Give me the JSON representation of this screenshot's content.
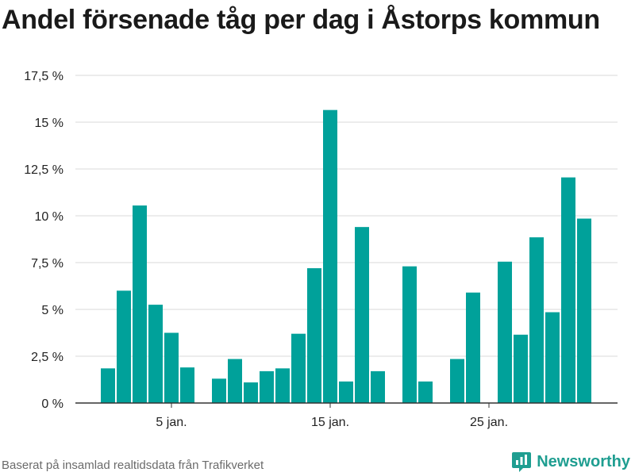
{
  "title": "Andel försenade tåg per dag i Åstorps kommun",
  "footer": "Baserat på insamlad realtidsdata från Trafikverket",
  "brand": {
    "name": "Newsworthy",
    "icon": "newsworthy-logo-icon",
    "color": "#1f9e91"
  },
  "colors": {
    "bar": "#00a19a",
    "grid": "#d9d9d9",
    "axis": "#333333"
  },
  "chart_data": {
    "type": "bar",
    "title": "Andel försenade tåg per dag i Åstorps kommun",
    "xlabel": "",
    "ylabel": "",
    "ylim": [
      0,
      17.5
    ],
    "y_ticks": [
      0,
      2.5,
      5,
      7.5,
      10,
      12.5,
      15,
      17.5
    ],
    "y_tick_labels": [
      "0 %",
      "2,5 %",
      "5 %",
      "7,5 %",
      "10 %",
      "12,5 %",
      "15 %",
      "17,5 %"
    ],
    "x_tick_labels": [
      {
        "day": 5,
        "label": "5 jan."
      },
      {
        "day": 15,
        "label": "15 jan."
      },
      {
        "day": 25,
        "label": "25 jan."
      }
    ],
    "grid": true,
    "days": [
      1,
      2,
      3,
      4,
      5,
      6,
      7,
      8,
      9,
      10,
      11,
      12,
      13,
      14,
      15,
      16,
      17,
      18,
      19,
      20,
      21,
      22,
      23,
      24,
      25,
      26,
      27,
      28,
      29,
      30,
      31,
      32
    ],
    "values": [
      1.85,
      6.0,
      10.55,
      5.25,
      3.75,
      1.9,
      null,
      1.3,
      2.35,
      1.1,
      1.7,
      1.85,
      3.7,
      7.2,
      15.65,
      1.15,
      9.4,
      1.7,
      null,
      7.3,
      1.15,
      null,
      2.35,
      5.9,
      null,
      7.55,
      3.65,
      8.85,
      4.85,
      12.05,
      9.85,
      null
    ]
  }
}
